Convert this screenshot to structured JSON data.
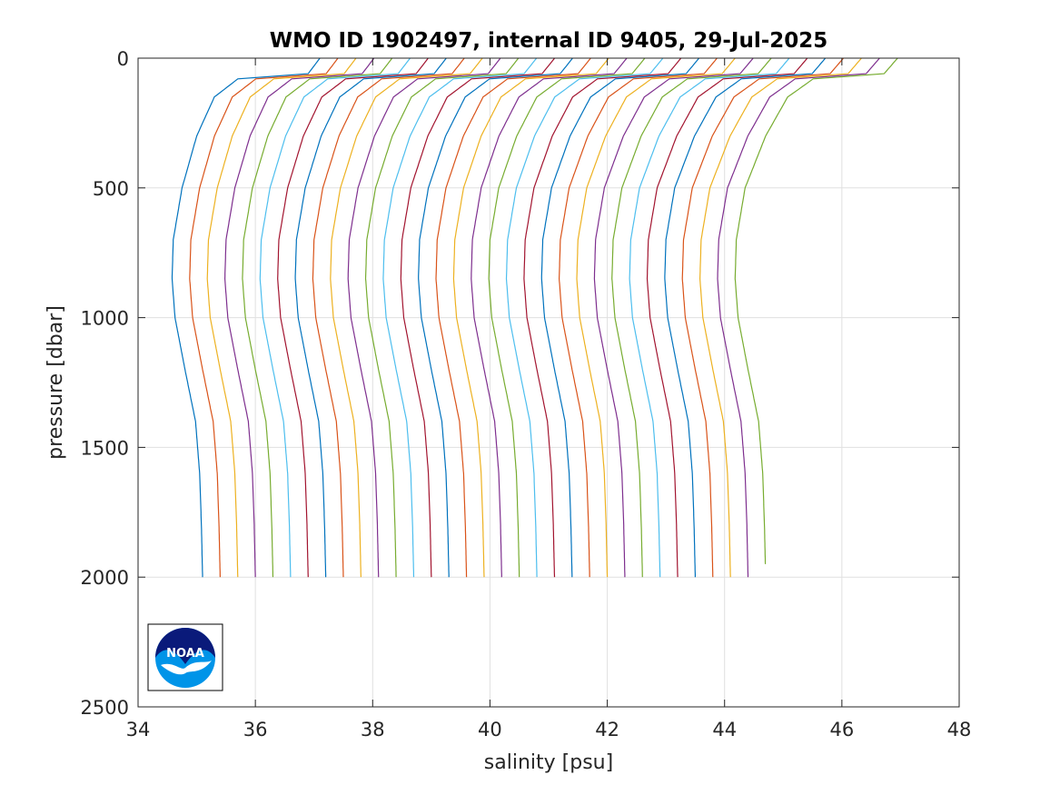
{
  "chart_data": {
    "type": "line",
    "title": "WMO ID 1902497, internal ID 9405, 29-Jul-2025",
    "xlabel": "salinity [psu]",
    "ylabel": "pressure [dbar]",
    "xlim": [
      34,
      48
    ],
    "ylim": [
      0,
      2500
    ],
    "y_reversed": true,
    "grid": true,
    "x_ticks": [
      34,
      36,
      38,
      40,
      42,
      44,
      46,
      48
    ],
    "y_ticks": [
      0,
      500,
      1000,
      1500,
      2000,
      2500
    ],
    "series_colors": [
      "#0072BD",
      "#D95319",
      "#EDB120",
      "#7E2F8E",
      "#77AC30",
      "#4DBEEE",
      "#A2142F"
    ],
    "profile_count": 33,
    "profile_offset_step": 0.3,
    "first_profile_deep_salinity": 35.1,
    "base_profile": {
      "pressure": [
        0,
        60,
        80,
        150,
        300,
        500,
        700,
        850,
        1000,
        1200,
        1400,
        1600,
        1800,
        2000
      ],
      "salinity": [
        37.1,
        36.9,
        35.7,
        35.3,
        35.0,
        34.75,
        34.6,
        34.58,
        34.63,
        34.8,
        34.98,
        35.05,
        35.08,
        35.1
      ]
    },
    "last_profile_max_pressure": 1950,
    "logo": "noaa-logo"
  }
}
